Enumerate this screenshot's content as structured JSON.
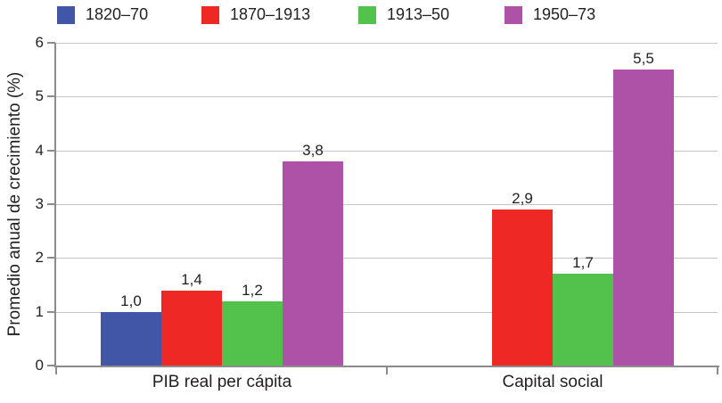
{
  "chart_data": {
    "type": "bar",
    "title": "",
    "xlabel": "",
    "ylabel": "Promedio anual de crecimiento (%)",
    "ylim": [
      0,
      6
    ],
    "yticks": [
      "0",
      "1",
      "2",
      "3",
      "4",
      "5",
      "6"
    ],
    "grid": true,
    "legend_position": "top",
    "categories": [
      "PIB real per cápita",
      "Capital social"
    ],
    "series": [
      {
        "name": "1820–70",
        "color": "#4156a6",
        "values": [
          1.0,
          null
        ]
      },
      {
        "name": "1870–1913",
        "color": "#ee2824",
        "values": [
          1.4,
          2.9
        ]
      },
      {
        "name": "1913–50",
        "color": "#52c24c",
        "values": [
          1.2,
          1.7
        ]
      },
      {
        "name": "1950–73",
        "color": "#ae52a8",
        "values": [
          3.8,
          5.5
        ]
      }
    ],
    "value_labels": [
      [
        "1,0",
        "1,4",
        "1,2",
        "3,8"
      ],
      [
        null,
        "2,9",
        "1,7",
        "5,5"
      ]
    ]
  },
  "colors": {
    "axis": "#8c8c8c",
    "grid": "#c6c6c6",
    "text": "#231f20",
    "background": "#ffffff"
  }
}
